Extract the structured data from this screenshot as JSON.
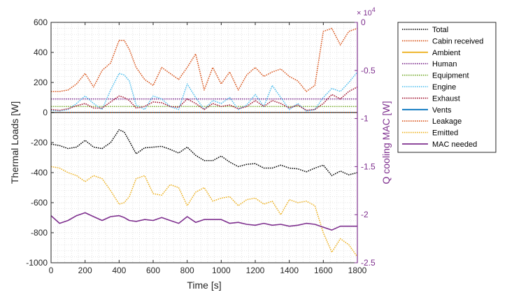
{
  "chart_data": {
    "type": "line",
    "xlabel": "Time [s]",
    "ylabel_left": "Thermal Loads [W]",
    "ylabel_right": "Q cooling MAC [W]",
    "right_axis_exponent_base": "× 10",
    "right_axis_exponent_power": "4",
    "xlim": [
      0,
      1800
    ],
    "ylim_left": [
      -1000,
      600
    ],
    "ylim_right": [
      -2.5,
      0
    ],
    "x_ticks": [
      0,
      200,
      400,
      600,
      800,
      1000,
      1200,
      1400,
      1600,
      1800
    ],
    "y_ticks_left": [
      600,
      400,
      200,
      0,
      -200,
      -400,
      -600,
      -800,
      -1000
    ],
    "y_ticks_right": [
      0,
      -0.5,
      -1,
      -1.5,
      -2,
      -2.5
    ],
    "y_tick_labels_right": [
      "0",
      "-0.5",
      "-1",
      "-1.5",
      "-2",
      "-2.5"
    ],
    "grid": "minor dotted",
    "legend_position": "outside-right",
    "colors": {
      "right_axis": "#7E2F8E",
      "grid": "#d8d8d8"
    },
    "series": [
      {
        "name": "Total",
        "axis": "left",
        "color": "#000000",
        "style": "dotted",
        "x": [
          0,
          50,
          100,
          150,
          200,
          250,
          300,
          350,
          400,
          430,
          460,
          500,
          550,
          600,
          650,
          700,
          750,
          800,
          850,
          900,
          950,
          1000,
          1050,
          1100,
          1150,
          1200,
          1250,
          1300,
          1350,
          1400,
          1450,
          1500,
          1550,
          1600,
          1650,
          1700,
          1750,
          1800
        ],
        "y": [
          -210,
          -220,
          -240,
          -230,
          -185,
          -230,
          -240,
          -200,
          -115,
          -130,
          -190,
          -275,
          -235,
          -230,
          -225,
          -245,
          -270,
          -230,
          -285,
          -320,
          -320,
          -290,
          -330,
          -360,
          -345,
          -340,
          -370,
          -370,
          -350,
          -370,
          -375,
          -395,
          -370,
          -350,
          -420,
          -390,
          -415,
          -400
        ]
      },
      {
        "name": "Cabin received",
        "axis": "left",
        "color": "#D95319",
        "style": "dotted",
        "x": [
          0,
          50,
          100,
          150,
          200,
          250,
          300,
          350,
          400,
          430,
          460,
          500,
          550,
          600,
          650,
          700,
          750,
          800,
          850,
          900,
          950,
          1000,
          1050,
          1100,
          1150,
          1200,
          1250,
          1300,
          1350,
          1400,
          1450,
          1500,
          1550,
          1600,
          1650,
          1700,
          1750,
          1800
        ],
        "y": [
          140,
          140,
          150,
          190,
          260,
          170,
          280,
          330,
          480,
          480,
          420,
          300,
          220,
          180,
          300,
          260,
          220,
          300,
          390,
          150,
          300,
          190,
          270,
          150,
          250,
          300,
          240,
          270,
          290,
          240,
          210,
          140,
          180,
          540,
          560,
          450,
          540,
          560
        ]
      },
      {
        "name": "Ambient",
        "axis": "left",
        "color": "#EDB120",
        "style": "solid",
        "x": [
          0,
          1800
        ],
        "y": [
          0,
          0
        ]
      },
      {
        "name": "Human",
        "axis": "left",
        "color": "#7E2F8E",
        "style": "dotted",
        "x": [
          0,
          1800
        ],
        "y": [
          90,
          90
        ]
      },
      {
        "name": "Equipment",
        "axis": "left",
        "color": "#77AC30",
        "style": "dotted",
        "x": [
          0,
          1800
        ],
        "y": [
          40,
          40
        ]
      },
      {
        "name": "Engine",
        "axis": "left",
        "color": "#4DBEEE",
        "style": "dotted",
        "x": [
          0,
          50,
          100,
          150,
          200,
          250,
          300,
          350,
          400,
          430,
          460,
          500,
          550,
          600,
          650,
          700,
          750,
          800,
          850,
          900,
          950,
          1000,
          1050,
          1100,
          1150,
          1200,
          1250,
          1300,
          1350,
          1400,
          1450,
          1500,
          1550,
          1600,
          1650,
          1700,
          1750,
          1800
        ],
        "y": [
          15,
          10,
          20,
          60,
          110,
          60,
          20,
          150,
          260,
          250,
          210,
          50,
          20,
          110,
          90,
          40,
          20,
          190,
          100,
          20,
          80,
          60,
          100,
          20,
          50,
          120,
          40,
          180,
          100,
          20,
          60,
          10,
          20,
          100,
          160,
          140,
          200,
          270
        ]
      },
      {
        "name": "Exhaust",
        "axis": "left",
        "color": "#A2142F",
        "style": "dotted",
        "x": [
          0,
          50,
          100,
          150,
          200,
          250,
          300,
          350,
          400,
          430,
          460,
          500,
          550,
          600,
          650,
          700,
          750,
          800,
          850,
          900,
          950,
          1000,
          1050,
          1100,
          1150,
          1200,
          1250,
          1300,
          1350,
          1400,
          1450,
          1500,
          1550,
          1600,
          1650,
          1700,
          1750,
          1800
        ],
        "y": [
          20,
          15,
          25,
          45,
          60,
          30,
          30,
          70,
          110,
          100,
          80,
          30,
          40,
          70,
          65,
          40,
          35,
          90,
          60,
          20,
          60,
          40,
          50,
          25,
          40,
          80,
          40,
          80,
          60,
          30,
          50,
          15,
          20,
          60,
          120,
          90,
          140,
          170
        ]
      },
      {
        "name": "Vents",
        "axis": "left",
        "color": "#0072BD",
        "style": "solid",
        "x": [
          0,
          1800
        ],
        "y": [
          0,
          0
        ]
      },
      {
        "name": "Leakage",
        "axis": "left",
        "color": "#D95319",
        "style": "dotted",
        "x": [
          0,
          1800
        ],
        "y": [
          0,
          0
        ]
      },
      {
        "name": "Emitted",
        "axis": "left",
        "color": "#EDB120",
        "style": "dotted",
        "x": [
          0,
          50,
          100,
          150,
          200,
          250,
          300,
          350,
          400,
          430,
          460,
          500,
          550,
          600,
          650,
          700,
          750,
          800,
          850,
          900,
          950,
          1000,
          1050,
          1100,
          1150,
          1200,
          1250,
          1300,
          1350,
          1400,
          1450,
          1500,
          1550,
          1600,
          1650,
          1700,
          1750,
          1800
        ],
        "y": [
          -360,
          -370,
          -400,
          -420,
          -460,
          -420,
          -440,
          -520,
          -610,
          -600,
          -560,
          -440,
          -420,
          -540,
          -550,
          -480,
          -500,
          -620,
          -530,
          -500,
          -590,
          -570,
          -560,
          -620,
          -580,
          -570,
          -610,
          -590,
          -680,
          -580,
          -600,
          -590,
          -620,
          -800,
          -930,
          -840,
          -880,
          -960
        ]
      },
      {
        "name": "MAC needed",
        "axis": "right",
        "color": "#7E2F8E",
        "style": "solid",
        "x": [
          0,
          50,
          100,
          150,
          200,
          250,
          300,
          350,
          400,
          430,
          460,
          500,
          550,
          600,
          650,
          700,
          750,
          800,
          850,
          900,
          950,
          1000,
          1050,
          1100,
          1150,
          1200,
          1250,
          1300,
          1350,
          1400,
          1450,
          1500,
          1550,
          1600,
          1650,
          1700,
          1750,
          1800
        ],
        "y": [
          -2.01,
          -2.09,
          -2.06,
          -2.01,
          -1.98,
          -2.02,
          -2.06,
          -2.02,
          -2.01,
          -2.03,
          -2.06,
          -2.07,
          -2.05,
          -2.06,
          -2.03,
          -2.06,
          -2.09,
          -2.02,
          -2.08,
          -2.05,
          -2.05,
          -2.05,
          -2.09,
          -2.08,
          -2.1,
          -2.11,
          -2.09,
          -2.11,
          -2.1,
          -2.12,
          -2.11,
          -2.09,
          -2.1,
          -2.13,
          -2.16,
          -2.12,
          -2.12,
          -2.12
        ]
      }
    ]
  }
}
